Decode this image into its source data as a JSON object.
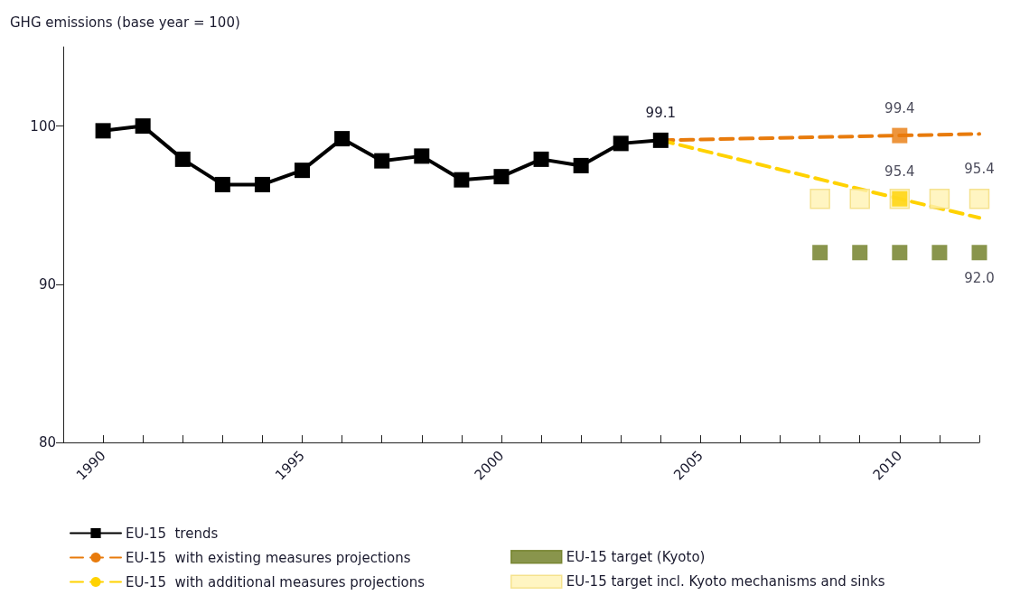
{
  "chart_data": {
    "type": "line",
    "ylabel": "GHG emissions (base year = 100)",
    "xlim": [
      1989,
      2012
    ],
    "ylim": [
      80,
      105
    ],
    "yticks": [
      80,
      90,
      100
    ],
    "xticks": [
      {
        "value": 1989,
        "label": null
      },
      1990,
      {
        "value": 1991,
        "label": null
      },
      {
        "value": 1992,
        "label": null
      },
      {
        "value": 1993,
        "label": null
      },
      {
        "value": 1994,
        "label": null
      },
      1995,
      {
        "value": 1996,
        "label": null
      },
      {
        "value": 1997,
        "label": null
      },
      {
        "value": 1998,
        "label": null
      },
      {
        "value": 1999,
        "label": null
      },
      2000,
      {
        "value": 2001,
        "label": null
      },
      {
        "value": 2002,
        "label": null
      },
      {
        "value": 2003,
        "label": null
      },
      {
        "value": 2004,
        "label": null
      },
      2005,
      {
        "value": 2006,
        "label": null
      },
      {
        "value": 2007,
        "label": null
      },
      {
        "value": 2008,
        "label": null
      },
      {
        "value": 2009,
        "label": null
      },
      2010,
      {
        "value": 2011,
        "label": null
      },
      {
        "value": 2012,
        "label": null
      }
    ],
    "grid": false,
    "legend": "bottom",
    "series": [
      {
        "name": "EU-15  trends",
        "color": "#000000",
        "marker": "square",
        "line_style": "solid",
        "x": [
          1990,
          1991,
          1992,
          1993,
          1994,
          1995,
          1996,
          1997,
          1998,
          1999,
          2000,
          2001,
          2002,
          2003,
          2004
        ],
        "values": [
          99.7,
          100.0,
          97.9,
          96.3,
          96.3,
          97.2,
          99.2,
          97.8,
          98.1,
          96.6,
          96.8,
          97.9,
          97.5,
          98.9,
          99.1
        ],
        "value_labels": [
          null,
          null,
          null,
          null,
          null,
          null,
          null,
          null,
          null,
          null,
          null,
          null,
          null,
          null,
          "99.1"
        ]
      },
      {
        "name": "EU-15 target (Kyoto)",
        "type": "scatter",
        "color": "#6b7a1f",
        "marker": "square",
        "x": [
          2008,
          2009,
          2010,
          2011,
          2012
        ],
        "values": [
          92.0,
          92.0,
          92.0,
          92.0,
          92.0
        ],
        "value_labels": [
          null,
          null,
          null,
          null,
          "92.0"
        ]
      },
      {
        "name": "EU-15  with existing measures projections",
        "color": "#e87b0c",
        "marker": "none",
        "line_style": "dashed",
        "x": [
          2004,
          2010,
          2012
        ],
        "values": [
          99.1,
          99.4,
          99.5
        ]
      },
      {
        "name": "EU-15 target incl. Kyoto mechanisms and sinks",
        "type": "scatter",
        "color": "#fff2b3",
        "marker": "square",
        "x": [
          2008,
          2009,
          2010,
          2011,
          2012
        ],
        "values": [
          95.4,
          95.4,
          95.4,
          95.4,
          95.4
        ],
        "value_labels": [
          null,
          null,
          null,
          null,
          "95.4"
        ]
      },
      {
        "name": "EU-15  with additional measures projections",
        "color": "#ffd200",
        "marker": "none",
        "line_style": "dashed",
        "x": [
          2004,
          2010,
          2012
        ],
        "values": [
          99.1,
          95.4,
          94.2
        ]
      },
      {
        "type": "scatter",
        "color": "#e87b0c",
        "marker": "square",
        "x": [
          2010
        ],
        "values": [
          99.4
        ],
        "value_labels": [
          "99.4"
        ]
      },
      {
        "type": "scatter",
        "color": "#ffd200",
        "marker": "square",
        "x": [
          2010
        ],
        "values": [
          95.4
        ],
        "value_labels": [
          "95.4"
        ]
      }
    ]
  }
}
